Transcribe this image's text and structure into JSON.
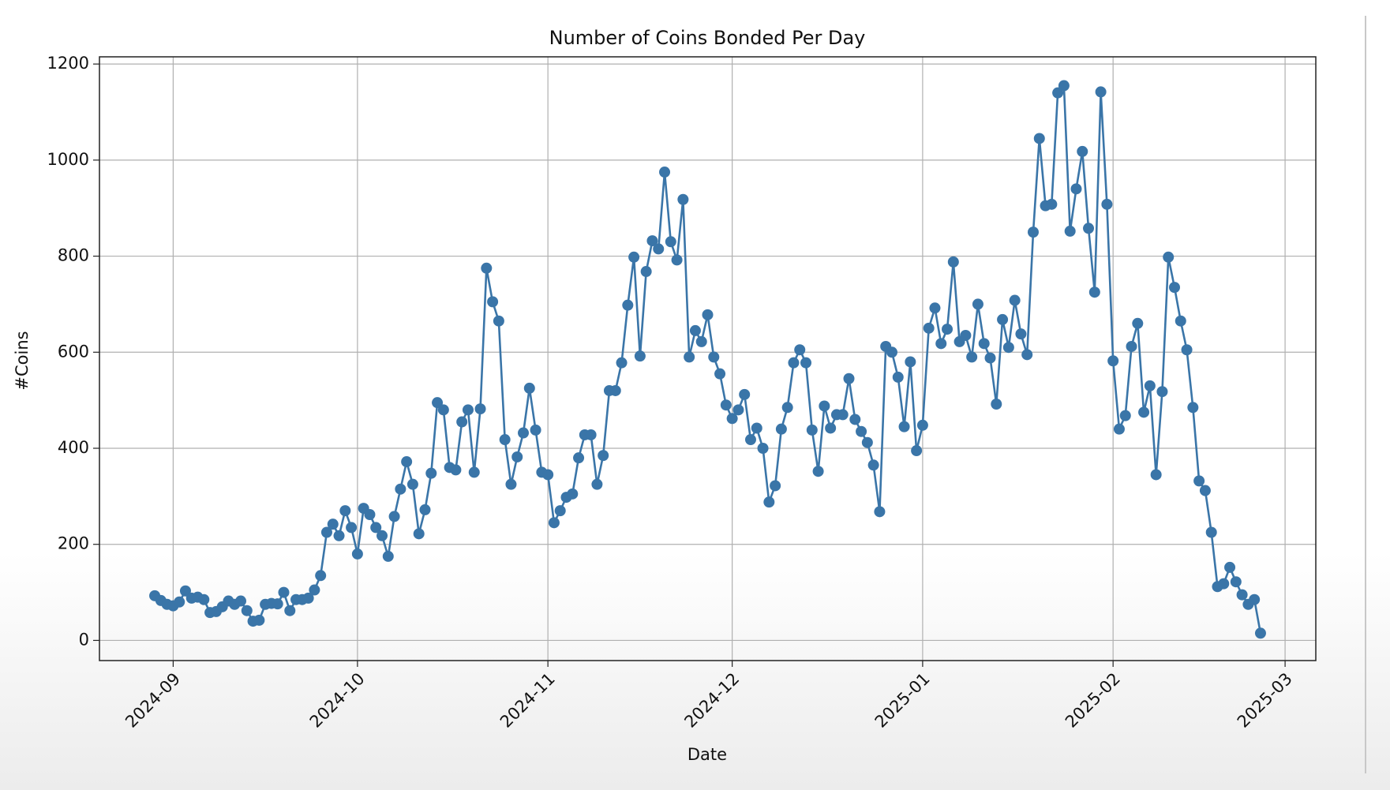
{
  "chart_data": {
    "type": "line",
    "title": "Number of Coins Bonded Per Day",
    "x_label": "Date",
    "y_label": "#Coins",
    "grid": true,
    "xlim": [
      "2024-08-20",
      "2025-03-06"
    ],
    "ylim": [
      -42,
      1215
    ],
    "xticks": [
      {
        "value": "2024-09-01",
        "label": "2024-09"
      },
      {
        "value": "2024-10-01",
        "label": "2024-10"
      },
      {
        "value": "2024-11-01",
        "label": "2024-11"
      },
      {
        "value": "2024-12-01",
        "label": "2024-12"
      },
      {
        "value": "2025-01-01",
        "label": "2025-01"
      },
      {
        "value": "2025-02-01",
        "label": "2025-02"
      },
      {
        "value": "2025-03-01",
        "label": "2025-03"
      }
    ],
    "yticks": [
      0,
      200,
      400,
      600,
      800,
      1000,
      1200
    ],
    "x": [
      "2024-08-29",
      "2024-08-30",
      "2024-08-31",
      "2024-09-01",
      "2024-09-02",
      "2024-09-03",
      "2024-09-04",
      "2024-09-05",
      "2024-09-06",
      "2024-09-07",
      "2024-09-08",
      "2024-09-09",
      "2024-09-10",
      "2024-09-11",
      "2024-09-12",
      "2024-09-13",
      "2024-09-14",
      "2024-09-15",
      "2024-09-16",
      "2024-09-17",
      "2024-09-18",
      "2024-09-19",
      "2024-09-20",
      "2024-09-21",
      "2024-09-22",
      "2024-09-23",
      "2024-09-24",
      "2024-09-25",
      "2024-09-26",
      "2024-09-27",
      "2024-09-28",
      "2024-09-29",
      "2024-09-30",
      "2024-10-01",
      "2024-10-02",
      "2024-10-03",
      "2024-10-04",
      "2024-10-05",
      "2024-10-06",
      "2024-10-07",
      "2024-10-08",
      "2024-10-09",
      "2024-10-10",
      "2024-10-11",
      "2024-10-12",
      "2024-10-13",
      "2024-10-14",
      "2024-10-15",
      "2024-10-16",
      "2024-10-17",
      "2024-10-18",
      "2024-10-19",
      "2024-10-20",
      "2024-10-21",
      "2024-10-22",
      "2024-10-23",
      "2024-10-24",
      "2024-10-25",
      "2024-10-26",
      "2024-10-27",
      "2024-10-28",
      "2024-10-29",
      "2024-10-30",
      "2024-10-31",
      "2024-11-01",
      "2024-11-02",
      "2024-11-03",
      "2024-11-04",
      "2024-11-05",
      "2024-11-06",
      "2024-11-07",
      "2024-11-08",
      "2024-11-09",
      "2024-11-10",
      "2024-11-11",
      "2024-11-12",
      "2024-11-13",
      "2024-11-14",
      "2024-11-15",
      "2024-11-16",
      "2024-11-17",
      "2024-11-18",
      "2024-11-19",
      "2024-11-20",
      "2024-11-21",
      "2024-11-22",
      "2024-11-23",
      "2024-11-24",
      "2024-11-25",
      "2024-11-26",
      "2024-11-27",
      "2024-11-28",
      "2024-11-29",
      "2024-11-30",
      "2024-12-01",
      "2024-12-02",
      "2024-12-03",
      "2024-12-04",
      "2024-12-05",
      "2024-12-06",
      "2024-12-07",
      "2024-12-08",
      "2024-12-09",
      "2024-12-10",
      "2024-12-11",
      "2024-12-12",
      "2024-12-13",
      "2024-12-14",
      "2024-12-15",
      "2024-12-16",
      "2024-12-17",
      "2024-12-18",
      "2024-12-19",
      "2024-12-20",
      "2024-12-21",
      "2024-12-22",
      "2024-12-23",
      "2024-12-24",
      "2024-12-25",
      "2024-12-26",
      "2024-12-27",
      "2024-12-28",
      "2024-12-29",
      "2024-12-30",
      "2024-12-31",
      "2025-01-01",
      "2025-01-02",
      "2025-01-03",
      "2025-01-04",
      "2025-01-05",
      "2025-01-06",
      "2025-01-07",
      "2025-01-08",
      "2025-01-09",
      "2025-01-10",
      "2025-01-11",
      "2025-01-12",
      "2025-01-13",
      "2025-01-14",
      "2025-01-15",
      "2025-01-16",
      "2025-01-17",
      "2025-01-18",
      "2025-01-19",
      "2025-01-20",
      "2025-01-21",
      "2025-01-22",
      "2025-01-23",
      "2025-01-24",
      "2025-01-25",
      "2025-01-26",
      "2025-01-27",
      "2025-01-28",
      "2025-01-29",
      "2025-01-30",
      "2025-01-31",
      "2025-02-01",
      "2025-02-02",
      "2025-02-03",
      "2025-02-04",
      "2025-02-05",
      "2025-02-06",
      "2025-02-07",
      "2025-02-08",
      "2025-02-09",
      "2025-02-10",
      "2025-02-11",
      "2025-02-12",
      "2025-02-13",
      "2025-02-14",
      "2025-02-15",
      "2025-02-16",
      "2025-02-17",
      "2025-02-18",
      "2025-02-19",
      "2025-02-20",
      "2025-02-21",
      "2025-02-22",
      "2025-02-23",
      "2025-02-24",
      "2025-02-25"
    ],
    "series": [
      {
        "name": "#Coins",
        "color": "#3a75a8",
        "values": [
          93,
          83,
          75,
          72,
          80,
          103,
          88,
          90,
          85,
          58,
          60,
          70,
          82,
          75,
          82,
          62,
          40,
          42,
          75,
          77,
          76,
          100,
          62,
          85,
          85,
          88,
          105,
          135,
          225,
          242,
          218,
          270,
          235,
          180,
          275,
          262,
          235,
          218,
          175,
          258,
          315,
          372,
          325,
          222,
          272,
          348,
          495,
          480,
          360,
          355,
          455,
          480,
          350,
          482,
          775,
          705,
          665,
          418,
          325,
          382,
          432,
          525,
          438,
          350,
          345,
          245,
          270,
          298,
          305,
          380,
          428,
          428,
          325,
          385,
          520,
          520,
          578,
          698,
          798,
          592,
          768,
          832,
          815,
          975,
          830,
          792,
          918,
          590,
          645,
          622,
          678,
          590,
          555,
          490,
          462,
          480,
          512,
          418,
          442,
          400,
          288,
          322,
          440,
          485,
          578,
          605,
          578,
          438,
          352,
          488,
          442,
          470,
          470,
          545,
          460,
          435,
          412,
          365,
          268,
          612,
          600,
          548,
          445,
          580,
          395,
          448,
          650,
          692,
          618,
          648,
          788,
          622,
          635,
          590,
          700,
          618,
          588,
          492,
          668,
          610,
          708,
          638,
          595,
          850,
          1045,
          905,
          908,
          1140,
          1155,
          852,
          940,
          1018,
          858,
          725,
          1142,
          908,
          582,
          440,
          468,
          612,
          660,
          475,
          530,
          345,
          518,
          798,
          735,
          665,
          605,
          485,
          332,
          312,
          225,
          112,
          118,
          152,
          122,
          95,
          75,
          85,
          15
        ]
      }
    ]
  }
}
